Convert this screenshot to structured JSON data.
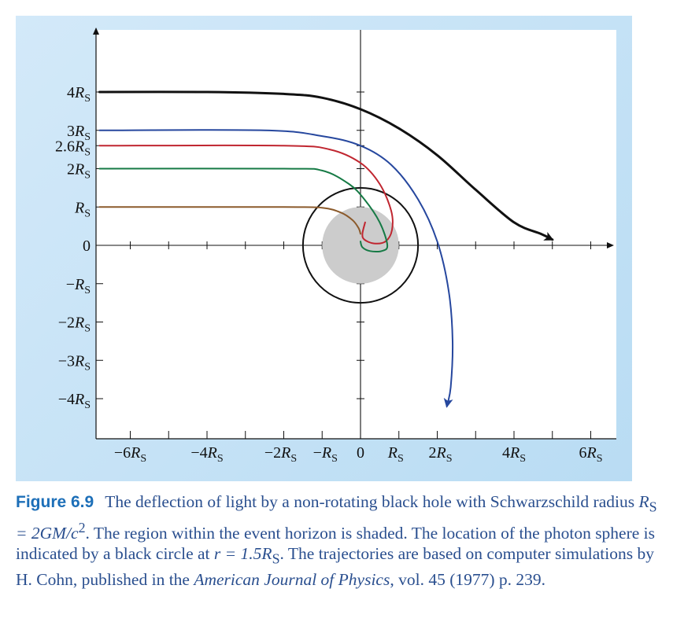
{
  "chart_data": {
    "type": "line",
    "title": "",
    "x_tick_labels": [
      "−6R_S",
      "−4R_S",
      "−2R_S",
      "−R_S",
      "0",
      "R_S",
      "2R_S",
      "4R_S",
      "6R_S"
    ],
    "y_tick_labels": [
      "4R_S",
      "3R_S",
      "2.6R_S",
      "2R_S",
      "R_S",
      "0",
      "−R_S",
      "−2R_S",
      "−3R_S",
      "−4R_S"
    ],
    "units": "R_S",
    "xlim": [
      -6.8,
      6.5
    ],
    "ylim": [
      -5.1,
      5.5
    ],
    "event_horizon": {
      "radius": 1,
      "shaded": true,
      "color": "#cccccc"
    },
    "photon_sphere": {
      "radius": 1.5,
      "color": "#111111"
    },
    "series": [
      {
        "impact_parameter": 4.0,
        "color": "#111111",
        "arrow": true,
        "x": [
          -6.8,
          -4.0,
          -2.0,
          -1.0,
          0.0,
          1.0,
          2.0,
          3.0,
          4.0,
          4.7,
          5.0
        ],
        "y": [
          4.0,
          4.0,
          3.95,
          3.85,
          3.55,
          3.05,
          2.35,
          1.45,
          0.6,
          0.3,
          0.15
        ]
      },
      {
        "impact_parameter": 3.0,
        "color": "#26479e",
        "arrow": true,
        "x": [
          -6.8,
          -2.5,
          -1.0,
          0.0,
          0.8,
          1.5,
          2.0,
          2.3,
          2.4,
          2.35,
          2.25
        ],
        "y": [
          3.0,
          3.0,
          2.85,
          2.6,
          2.1,
          1.2,
          0.1,
          -1.2,
          -2.5,
          -3.7,
          -4.2
        ]
      },
      {
        "impact_parameter": 2.6,
        "color": "#c02630",
        "arrow": false,
        "x": [
          -6.8,
          -2.0,
          -0.8,
          0.0,
          0.5,
          0.8,
          0.82,
          0.65,
          0.35,
          0.1,
          0.05,
          0.12
        ],
        "y": [
          2.6,
          2.6,
          2.5,
          2.15,
          1.6,
          0.9,
          0.4,
          0.1,
          0.05,
          0.15,
          0.3,
          0.6
        ]
      },
      {
        "impact_parameter": 2.0,
        "color": "#167a45",
        "arrow": false,
        "x": [
          -6.8,
          -2.0,
          -1.0,
          -0.3,
          0.1,
          0.5,
          0.7,
          0.55,
          0.25,
          0.05,
          0.0
        ],
        "y": [
          2.0,
          2.0,
          1.95,
          1.6,
          1.2,
          0.6,
          0.0,
          -0.15,
          -0.15,
          -0.05,
          0.1
        ]
      },
      {
        "impact_parameter": 1.0,
        "color": "#8b5a2b",
        "arrow": false,
        "x": [
          -6.8,
          -2.0,
          -1.0,
          -0.5,
          -0.2,
          -0.05,
          0.0
        ],
        "y": [
          1.0,
          1.0,
          0.98,
          0.85,
          0.65,
          0.45,
          0.3
        ]
      }
    ]
  },
  "caption": {
    "figure_label": "Figure 6.9",
    "text_1": "The deflection of light by a non-rotating black hole with Schwarzschild radius ",
    "formula_1": "R",
    "formula_1_sub": "S",
    "formula_1_rest": " = 2GM/c",
    "formula_1_sup": "2",
    "text_2": ". The region within the event horizon is shaded. The location of the photon sphere is indicated by a black circle at ",
    "formula_2": "r",
    "formula_2_rest": " = 1.5R",
    "formula_2_sub": "S",
    "text_3": ". The trajectories are based on computer simulations by H. Cohn, published in the ",
    "journal": "American Journal of Physics",
    "text_4": ", vol. 45 (1977) p. 239."
  }
}
